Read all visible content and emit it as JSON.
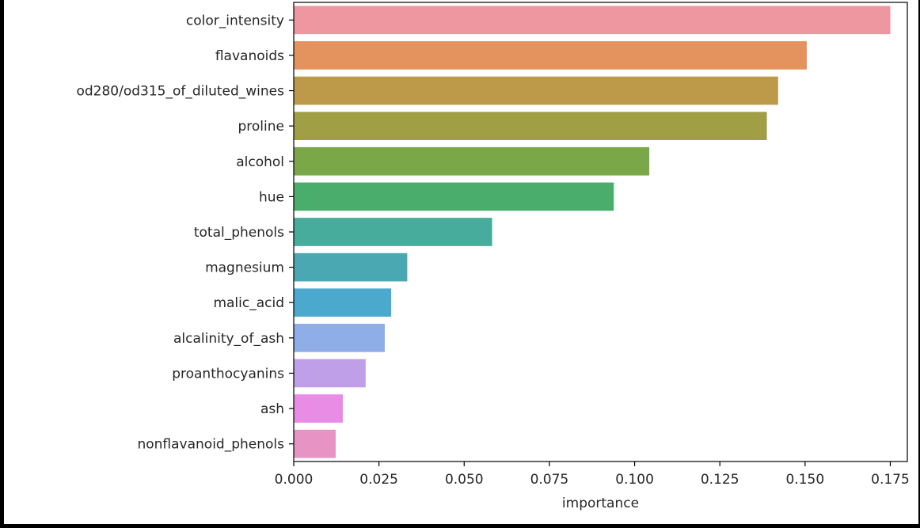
{
  "chart_data": {
    "type": "bar",
    "orientation": "horizontal",
    "title": "",
    "xlabel": "importance",
    "ylabel": "",
    "categories": [
      "color_intensity",
      "flavanoids",
      "od280/od315_of_diluted_wines",
      "proline",
      "alcohol",
      "hue",
      "total_phenols",
      "magnesium",
      "malic_acid",
      "alcalinity_of_ash",
      "proanthocyanins",
      "ash",
      "nonflavanoid_phenols"
    ],
    "values": [
      0.175,
      0.1505,
      0.1421,
      0.1388,
      0.1043,
      0.0939,
      0.0582,
      0.0333,
      0.0286,
      0.0267,
      0.0211,
      0.0144,
      0.0123
    ],
    "colors": [
      "#ee97a0",
      "#e4935e",
      "#bc9a4a",
      "#a09f45",
      "#7aa748",
      "#4aad6c",
      "#48ac9c",
      "#49a8b2",
      "#4aa9cc",
      "#8faee8",
      "#c09fe9",
      "#e88ce6",
      "#e794c4"
    ],
    "xlim": [
      0,
      0.18
    ],
    "xticks": [
      "0.000",
      "0.025",
      "0.050",
      "0.075",
      "0.100",
      "0.125",
      "0.150",
      "0.175"
    ],
    "grid": false,
    "legend": "none"
  }
}
